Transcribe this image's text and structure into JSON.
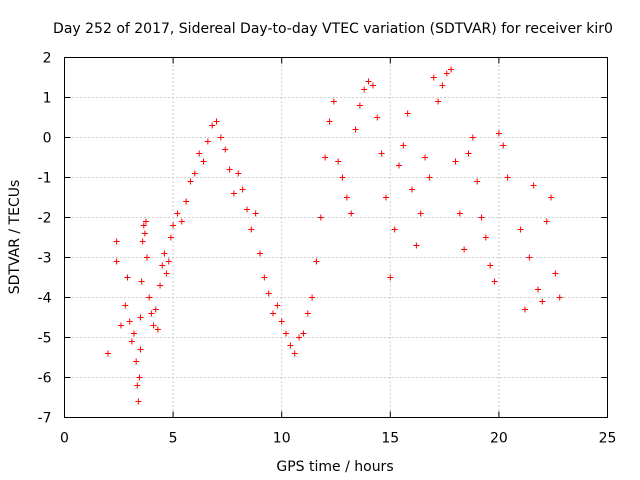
{
  "chart_data": {
    "type": "scatter",
    "title": "Day 252 of 2017, Sidereal Day-to-day VTEC variation (SDTVAR) for receiver kir0",
    "xlabel": "GPS time / hours",
    "ylabel": "SDTVAR / TECUs",
    "xlim": [
      0,
      25
    ],
    "ylim": [
      -7,
      2
    ],
    "xticks": [
      0,
      5,
      10,
      15,
      20,
      25
    ],
    "yticks": [
      -7,
      -6,
      -5,
      -4,
      -3,
      -2,
      -1,
      0,
      1,
      2
    ],
    "xtick_labels": [
      "0",
      "5",
      "10",
      "15",
      "20",
      "25"
    ],
    "ytick_labels": [
      "-7",
      "-6",
      "-5",
      "-4",
      "-3",
      "-2",
      "-1",
      "0",
      "1",
      "2"
    ],
    "grid": true,
    "marker": "+",
    "color": "#ff0000",
    "series": [
      {
        "name": "SDTVAR",
        "x": [
          2.0,
          2.4,
          2.4,
          2.6,
          2.8,
          2.9,
          3.0,
          3.1,
          3.2,
          3.3,
          3.35,
          3.4,
          3.45,
          3.5,
          3.5,
          3.55,
          3.6,
          3.65,
          3.7,
          3.75,
          3.8,
          3.9,
          4.0,
          4.1,
          4.2,
          4.3,
          4.4,
          4.5,
          4.6,
          4.7,
          4.8,
          4.9,
          5.0,
          5.2,
          5.4,
          5.6,
          5.8,
          6.0,
          6.2,
          6.4,
          6.6,
          6.8,
          7.0,
          7.2,
          7.4,
          7.6,
          7.8,
          8.0,
          8.2,
          8.4,
          8.6,
          8.8,
          9.0,
          9.2,
          9.4,
          9.6,
          9.8,
          10.0,
          10.2,
          10.4,
          10.6,
          10.8,
          11.0,
          11.2,
          11.4,
          11.6,
          11.8,
          12.0,
          12.2,
          12.4,
          12.6,
          12.8,
          13.0,
          13.2,
          13.4,
          13.6,
          13.8,
          14.0,
          14.2,
          14.4,
          14.6,
          14.8,
          15.0,
          15.2,
          15.4,
          15.6,
          15.8,
          16.0,
          16.2,
          16.4,
          16.6,
          16.8,
          17.0,
          17.2,
          17.4,
          17.6,
          17.8,
          18.0,
          18.2,
          18.4,
          18.6,
          18.8,
          19.0,
          19.2,
          19.4,
          19.6,
          19.8,
          20.0,
          20.2,
          20.4,
          21.0,
          21.2,
          21.4,
          21.6,
          21.8,
          22.0,
          22.2,
          22.4,
          22.6,
          22.8
        ],
        "y": [
          -5.4,
          -2.6,
          -3.1,
          -4.7,
          -4.2,
          -3.5,
          -4.6,
          -5.1,
          -4.9,
          -5.6,
          -6.2,
          -6.6,
          -6.0,
          -5.3,
          -4.5,
          -3.6,
          -2.6,
          -2.2,
          -2.4,
          -2.1,
          -3.0,
          -4.0,
          -4.4,
          -4.7,
          -4.3,
          -4.8,
          -3.7,
          -3.2,
          -2.9,
          -3.4,
          -3.1,
          -2.5,
          -2.2,
          -1.9,
          -2.1,
          -1.6,
          -1.1,
          -0.9,
          -0.4,
          -0.6,
          -0.1,
          0.3,
          0.4,
          0.0,
          -0.3,
          -0.8,
          -1.4,
          -0.9,
          -1.3,
          -1.8,
          -2.3,
          -1.9,
          -2.9,
          -3.5,
          -3.9,
          -4.4,
          -4.2,
          -4.6,
          -4.9,
          -5.2,
          -5.4,
          -5.0,
          -4.9,
          -4.4,
          -4.0,
          -3.1,
          -2.0,
          -0.5,
          0.4,
          0.9,
          -0.6,
          -1.0,
          -1.5,
          -1.9,
          0.2,
          0.8,
          1.2,
          1.4,
          1.3,
          0.5,
          -0.4,
          -1.5,
          -3.5,
          -2.3,
          -0.7,
          -0.2,
          0.6,
          -1.3,
          -2.7,
          -1.9,
          -0.5,
          -1.0,
          1.5,
          0.9,
          1.3,
          1.6,
          1.7,
          -0.6,
          -1.9,
          -2.8,
          -0.4,
          0.0,
          -1.1,
          -2.0,
          -2.5,
          -3.2,
          -3.6,
          0.1,
          -0.2,
          -1.0,
          -2.3,
          -4.3,
          -3.0,
          -1.2,
          -3.8,
          -4.1,
          -2.1,
          -1.5,
          -3.4,
          -4.0
        ]
      }
    ]
  }
}
